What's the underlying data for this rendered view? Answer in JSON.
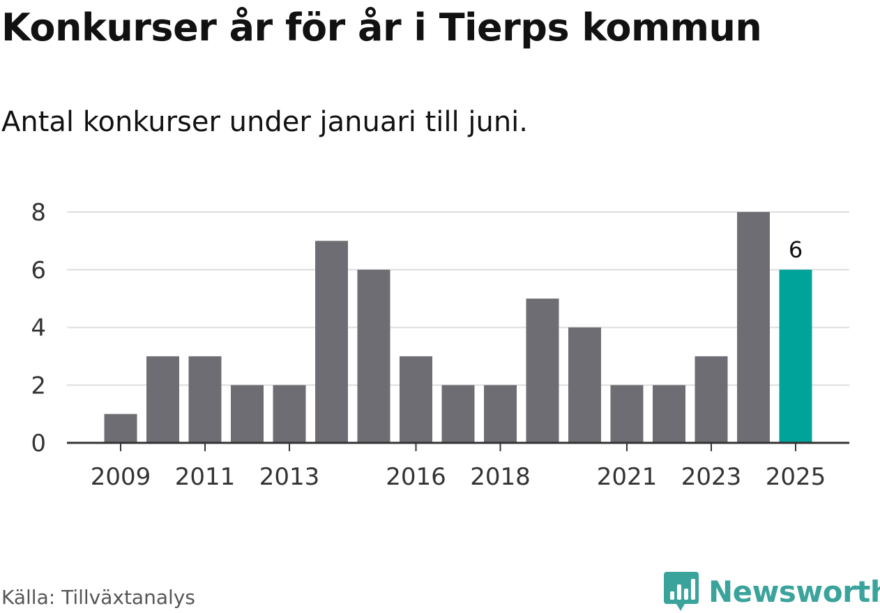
{
  "header": {
    "title": "Konkurser år för år i Tierps kommun",
    "subtitle": "Antal konkurser under januari till juni."
  },
  "footer": {
    "source": "Källa: Tillväxtanalys",
    "brand": "Newsworthy",
    "brand_icon": "newsworthy-logo-icon"
  },
  "colors": {
    "bar": "#6e6d73",
    "highlight": "#00a39a",
    "grid": "#dddddd",
    "axis": "#333333",
    "brand": "#3aa39b"
  },
  "chart_data": {
    "type": "bar",
    "categories": [
      "2009",
      "2010",
      "2011",
      "2012",
      "2013",
      "2014",
      "2015",
      "2016",
      "2017",
      "2018",
      "2019",
      "2020",
      "2021",
      "2022",
      "2023",
      "2024",
      "2025"
    ],
    "values": [
      1,
      3,
      3,
      2,
      2,
      7,
      6,
      3,
      2,
      2,
      5,
      4,
      2,
      2,
      3,
      8,
      6
    ],
    "x_tick_labels": [
      "2009",
      "2011",
      "2013",
      "2016",
      "2018",
      "2021",
      "2023",
      "2025"
    ],
    "y_ticks": [
      0,
      2,
      4,
      6,
      8
    ],
    "ylim": [
      0,
      8
    ],
    "highlight_category": "2025",
    "data_labels": [
      {
        "category": "2025",
        "text": "6"
      }
    ],
    "title": "Konkurser år för år i Tierps kommun",
    "subtitle": "Antal konkurser under januari till juni.",
    "xlabel": "",
    "ylabel": "",
    "grid": true,
    "legend": "none"
  }
}
